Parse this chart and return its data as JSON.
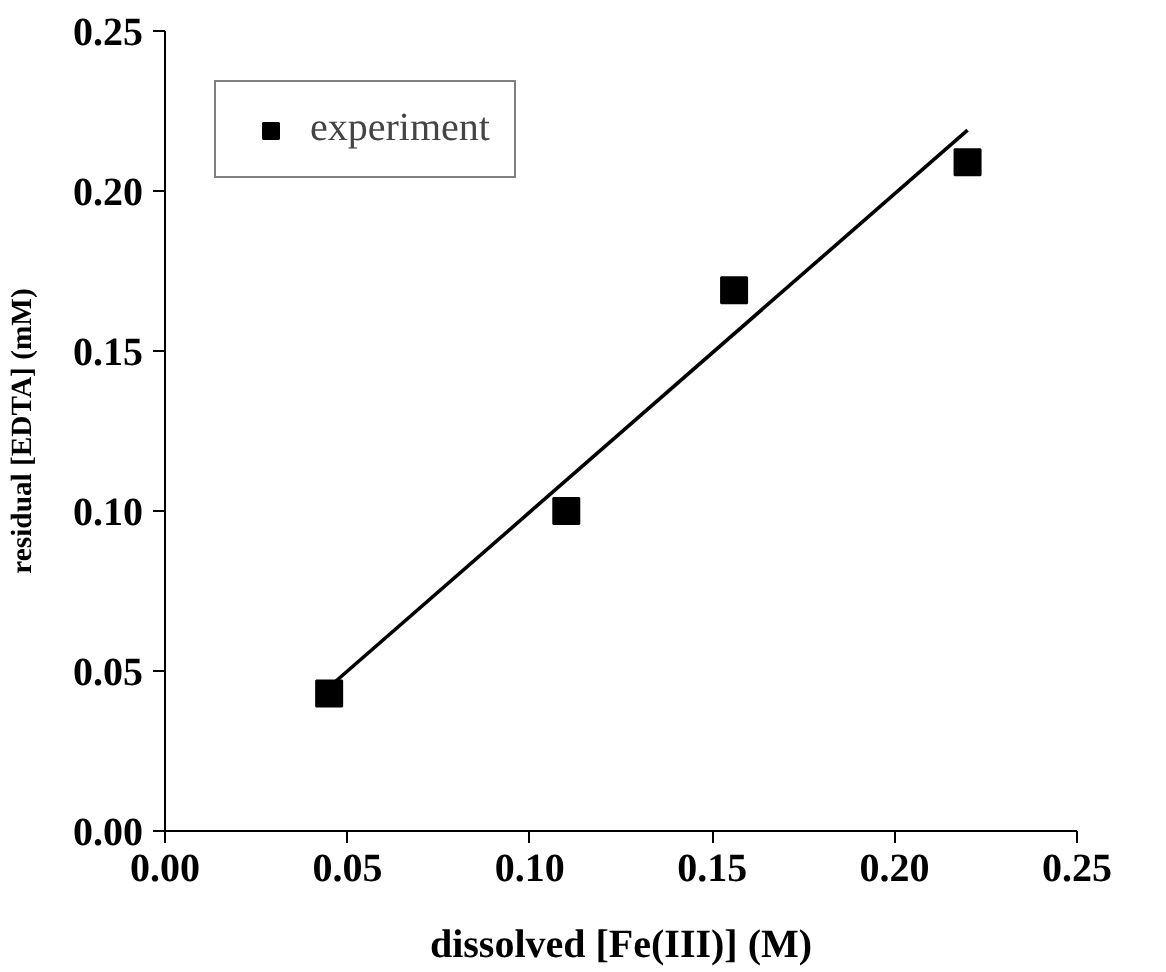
{
  "chart_data": {
    "type": "scatter",
    "xlabel": "dissolved [Fe(III)] (M)",
    "ylabel": "residual [EDTA] (mM)",
    "xlim": [
      0,
      0.25
    ],
    "ylim": [
      0,
      0.25
    ],
    "xticks": [
      {
        "value": 0,
        "label": "0.00"
      },
      {
        "value": 0.05,
        "label": "0.05"
      },
      {
        "value": 0.1,
        "label": "0.10"
      },
      {
        "value": 0.15,
        "label": "0.15"
      },
      {
        "value": 0.2,
        "label": "0.20"
      },
      {
        "value": 0.25,
        "label": "0.25"
      }
    ],
    "yticks": [
      {
        "value": 0,
        "label": "0.00"
      },
      {
        "value": 0.05,
        "label": "0.05"
      },
      {
        "value": 0.1,
        "label": "0.10"
      },
      {
        "value": 0.15,
        "label": "0.15"
      },
      {
        "value": 0.2,
        "label": "0.20"
      },
      {
        "value": 0.25,
        "label": "0.25"
      }
    ],
    "grid": false,
    "legend": "top left",
    "series": [
      {
        "name": "experiment",
        "marker": "square",
        "color": "#000000",
        "x": [
          0.045,
          0.11,
          0.156,
          0.22
        ],
        "values": [
          0.043,
          0.1,
          0.169,
          0.209
        ]
      },
      {
        "type": "line",
        "marker": "none",
        "color": "#000000",
        "line_style": "solid",
        "x": [
          0.045,
          0.22
        ],
        "values": [
          0.045,
          0.219
        ]
      }
    ]
  }
}
